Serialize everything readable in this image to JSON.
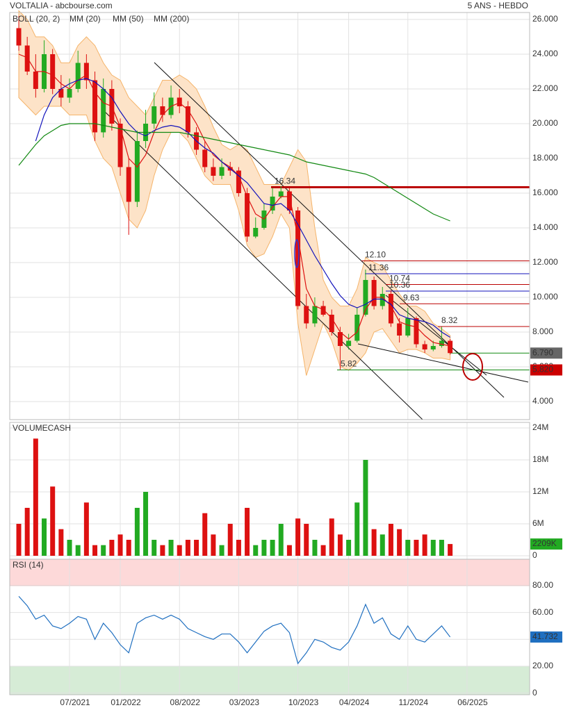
{
  "header": {
    "title": "VOLTALIA - abcbourse.com",
    "period": "5 ANS - HEBDO"
  },
  "chart_data": [
    {
      "type": "candlestick",
      "xlim": [
        -1.07,
        60.4
      ],
      "ylim": [
        2.96,
        26.4
      ],
      "xticks": [
        {
          "value": 6,
          "label": "07/2021"
        },
        {
          "value": 12,
          "label": "01/2022"
        },
        {
          "value": 19,
          "label": "08/2022"
        },
        {
          "value": 26,
          "label": "03/2023"
        },
        {
          "value": 33,
          "label": "10/2023"
        },
        {
          "value": 39,
          "label": "04/2024"
        },
        {
          "value": 46,
          "label": "11/2024"
        },
        {
          "value": 53,
          "label": "06/2025"
        }
      ],
      "yticks": [
        {
          "value": 26,
          "label": "26.000"
        },
        {
          "value": 24,
          "label": "24.000"
        },
        {
          "value": 22,
          "label": "22.000"
        },
        {
          "value": 20,
          "label": "20.000"
        },
        {
          "value": 18,
          "label": "18.000"
        },
        {
          "value": 16,
          "label": "16.000"
        },
        {
          "value": 14,
          "label": "14.000"
        },
        {
          "value": 12,
          "label": "12.000"
        },
        {
          "value": 10,
          "label": "10.000"
        },
        {
          "value": 8,
          "label": "8.000"
        },
        {
          "value": 6,
          "label": "6.000"
        },
        {
          "value": 4,
          "label": "4.000"
        }
      ],
      "grid": true,
      "up_color": "#22aa22",
      "down_color": "#dd1111",
      "x": [
        0,
        1,
        2,
        3,
        4,
        5,
        6,
        7,
        8,
        9,
        10,
        11,
        12,
        13,
        14,
        15,
        16,
        17,
        18,
        19,
        20,
        21,
        22,
        23,
        24,
        25,
        26,
        27,
        28,
        29,
        30,
        31,
        32,
        33,
        34,
        35,
        36,
        37,
        38,
        39,
        40,
        41,
        42,
        43,
        44,
        45,
        46,
        47,
        48,
        49,
        50,
        51
      ],
      "open": [
        25.5,
        24.5,
        23,
        22,
        24,
        22,
        21.5,
        22,
        23.5,
        22.5,
        19.5,
        22,
        20,
        17.5,
        15.5,
        19,
        20,
        21,
        20.5,
        21.5,
        21,
        19.5,
        18.5,
        17.5,
        17,
        17.5,
        17.3,
        16,
        13.5,
        14,
        15,
        15.8,
        16.1,
        15,
        9.5,
        8.5,
        9.5,
        9,
        8,
        7.2,
        7.5,
        9,
        11,
        9.5,
        10.2,
        8.5,
        7.8,
        8.8,
        7.3,
        7,
        7.2,
        7.5
      ],
      "high": [
        26.2,
        25,
        24,
        24.8,
        24.3,
        22.8,
        22.6,
        24.2,
        24,
        23,
        22.6,
        22.5,
        20.3,
        18,
        19.6,
        20.8,
        21.8,
        21.5,
        22.2,
        22,
        21.3,
        19.8,
        19,
        18,
        18,
        17.8,
        17.5,
        16.3,
        14.6,
        15.4,
        16.3,
        16.4,
        16.3,
        15.2,
        10.2,
        10,
        9.8,
        9.3,
        8.3,
        7.9,
        9.4,
        11.6,
        11.2,
        10.6,
        10.4,
        8.8,
        9.4,
        8.9,
        7.5,
        7.5,
        8.3,
        7.6
      ],
      "low": [
        24.2,
        22.8,
        21.5,
        21.8,
        21.7,
        21,
        21.2,
        21.8,
        22,
        19,
        19.2,
        19.6,
        17,
        13.6,
        15.2,
        18.6,
        19.7,
        20.1,
        20.3,
        20.6,
        19.2,
        18.2,
        17.2,
        16.7,
        16.8,
        17,
        15.8,
        13.2,
        13.4,
        13.9,
        14.8,
        15.7,
        14.8,
        9.3,
        8.2,
        8.3,
        8.9,
        7.8,
        5.82,
        7,
        7.4,
        8.9,
        9.3,
        9.3,
        8.3,
        7.4,
        7.7,
        7.1,
        6.8,
        6.9,
        7.1,
        6.7
      ],
      "close": [
        24.5,
        23,
        22,
        24,
        22,
        21.5,
        22,
        23.5,
        22.5,
        19.5,
        22,
        20,
        17.5,
        15.5,
        19,
        20,
        21,
        20.5,
        21.5,
        21,
        19.5,
        18.5,
        17.5,
        17,
        17.5,
        17.3,
        16,
        13.5,
        14,
        15,
        15.8,
        16.1,
        15,
        9.5,
        8.5,
        9.5,
        9,
        8,
        7.2,
        7.5,
        9,
        11,
        9.5,
        10.2,
        8.5,
        7.8,
        8.8,
        7.3,
        7,
        7.2,
        7.5,
        6.79
      ],
      "bands": {
        "name": "BOLL (20, 2)",
        "color": "#f5b46a",
        "fill": "#fde3c8",
        "upper": [
          26.5,
          26,
          25,
          25,
          24.5,
          23.5,
          23.5,
          24.5,
          25,
          24.5,
          23.5,
          22.8,
          22.5,
          21.5,
          21,
          20.5,
          21.5,
          22.5,
          22.5,
          22.8,
          22.5,
          22,
          21,
          19.8,
          18.8,
          18.5,
          18.8,
          18.5,
          17.5,
          16.5,
          16.5,
          16.5,
          17.5,
          18.5,
          17.8,
          14,
          11,
          10,
          9.5,
          9.5,
          10.5,
          12.3,
          12,
          11.8,
          11,
          10.2,
          9.5,
          9.5,
          9.2,
          8.5,
          8.2,
          7.8
        ],
        "lower": [
          21.5,
          21,
          20.5,
          21,
          21,
          21,
          20.5,
          20.5,
          20.5,
          19,
          18,
          17.5,
          16,
          14.5,
          14,
          15,
          17,
          18.5,
          19.5,
          19.5,
          19,
          18,
          17,
          16.5,
          16.5,
          16.5,
          15,
          13,
          12.3,
          12.5,
          13.5,
          14.8,
          14,
          8.5,
          5.5,
          7,
          8.5,
          7.5,
          6,
          5.8,
          6.2,
          6.8,
          8,
          8.2,
          7.5,
          6.8,
          7,
          7,
          6.8,
          6.5,
          6.5,
          6.4
        ]
      },
      "series": [
        {
          "name": "MM (20)",
          "color": "#dd1111",
          "values": [
            24,
            23.8,
            23,
            23,
            22.8,
            22.3,
            22,
            22.5,
            22.8,
            21.8,
            21.2,
            21,
            19.8,
            18,
            17.5,
            18.2,
            19.5,
            20.5,
            21,
            21.2,
            20.8,
            20,
            19,
            18.2,
            17.8,
            17.5,
            17,
            15.8,
            14.8,
            14.5,
            15.2,
            15.8,
            15.8,
            13.5,
            10.5,
            9.5,
            9.3,
            8.8,
            8,
            7.6,
            8,
            9.3,
            10,
            10,
            9.5,
            8.6,
            8.4,
            8.3,
            7.8,
            7.4,
            7.3,
            7.2
          ]
        },
        {
          "name": "MM (50)",
          "color": "#1111bb",
          "values": [
            null,
            null,
            19,
            20.5,
            21.5,
            22,
            22.3,
            22.5,
            22.6,
            22.4,
            22,
            21.5,
            20.7,
            20,
            19.5,
            19.3,
            19.6,
            19.8,
            19.9,
            19.8,
            19.5,
            19,
            18.6,
            18.3,
            17.8,
            17.4,
            17,
            16.6,
            16,
            15.4,
            15.3,
            15.4,
            15,
            14.2,
            13.3,
            12.4,
            11.6,
            10.8,
            10.1,
            9.6,
            9.4,
            9.6,
            9.9,
            9.9,
            9.6,
            9,
            8.8,
            8.7,
            8.6,
            8.4,
            8,
            7.7
          ]
        },
        {
          "name": "MM (200)",
          "color": "#118811",
          "values": [
            17.6,
            18.2,
            18.8,
            19.3,
            19.6,
            19.9,
            20,
            20,
            20,
            20,
            19.9,
            19.8,
            19.7,
            19.6,
            19.5,
            19.5,
            19.5,
            19.5,
            19.5,
            19.5,
            19.4,
            19.3,
            19.2,
            19.1,
            19,
            18.9,
            18.8,
            18.7,
            18.6,
            18.5,
            18.4,
            18.3,
            18.2,
            18,
            17.8,
            17.7,
            17.6,
            17.5,
            17.4,
            17.3,
            17.2,
            17.1,
            16.9,
            16.6,
            16.3,
            16,
            15.7,
            15.4,
            15.1,
            14.8,
            14.6,
            14.4
          ]
        }
      ],
      "levels": [
        {
          "value": 16.34,
          "label": "16.34",
          "color": "#bb0000"
        },
        {
          "value": 12.1,
          "label": "12.10",
          "color": "#bb0000"
        },
        {
          "value": 11.36,
          "label": "11.36",
          "color": "#1111bb"
        },
        {
          "value": 10.74,
          "label": "10.74",
          "color": "#bb0000"
        },
        {
          "value": 10.36,
          "label": "10.36",
          "color": "#1111bb"
        },
        {
          "value": 9.63,
          "label": "9.63",
          "color": "#bb0000"
        },
        {
          "value": 8.32,
          "label": "8.32",
          "color": "#bb0000"
        },
        {
          "value": 6.79,
          "badge": "6.790",
          "color": "#118811",
          "badge_color": "#666666"
        },
        {
          "value": 5.82,
          "label": "5.82",
          "badge": "5.820",
          "color": "#118811",
          "badge_color": "#cc0000"
        }
      ]
    },
    {
      "type": "bar",
      "title": "VOLUMECASH",
      "ylim": [
        -650000,
        25040000
      ],
      "yticks": [
        {
          "value": 24000000,
          "label": "24M"
        },
        {
          "value": 18000000,
          "label": "18M"
        },
        {
          "value": 12000000,
          "label": "12M"
        },
        {
          "value": 6000000,
          "label": "6M"
        },
        0
      ],
      "values": [
        6000000,
        9000000,
        22000000,
        7000000,
        13000000,
        5000000,
        3000000,
        2000000,
        10000000,
        2000000,
        2000000,
        3000000,
        4000000,
        3000000,
        9000000,
        12000000,
        3000000,
        2000000,
        3000000,
        2000000,
        3000000,
        3000000,
        8000000,
        4000000,
        2000000,
        6000000,
        3000000,
        9000000,
        2000000,
        3000000,
        3000000,
        6000000,
        2000000,
        7000000,
        6000000,
        3000000,
        2000000,
        7000000,
        4000000,
        3000000,
        10000000,
        18000000,
        5000000,
        4000000,
        6000000,
        5000000,
        3000000,
        3000000,
        4000000,
        3000000,
        3000000,
        2209000
      ],
      "value_labels": [
        null,
        null,
        null,
        null,
        null,
        null,
        null,
        null,
        null,
        null,
        null,
        null,
        null,
        null,
        null,
        null,
        null,
        null,
        null,
        null,
        null,
        null,
        null,
        null,
        null,
        null,
        null,
        null,
        null,
        null,
        null,
        null,
        null,
        null,
        null,
        null,
        null,
        null,
        null,
        null,
        null,
        null,
        null,
        null,
        null,
        null,
        null,
        null,
        null,
        null,
        null,
        "2209K"
      ],
      "badge_color": "#22aa22"
    },
    {
      "type": "line",
      "title": "RSI (14)",
      "color": "#1f6fc0",
      "ylim": [
        -1.2,
        99.6
      ],
      "yticks": [
        {
          "value": 80,
          "label": "80.00"
        },
        {
          "value": 60,
          "label": "60.00"
        },
        {
          "value": 40,
          "label": "40.00"
        },
        {
          "value": 20,
          "label": "20.00"
        },
        0
      ],
      "zones": [
        {
          "from": 80,
          "to": 99.6,
          "color": "#fdd9d9",
          "edge": "#e05050"
        },
        {
          "from": -1.2,
          "to": 20,
          "color": "#d6ecd6",
          "edge": "#50a050"
        }
      ],
      "values": [
        72,
        65,
        55,
        58,
        50,
        48,
        52,
        57,
        55,
        40,
        52,
        45,
        36,
        30,
        52,
        56,
        58,
        55,
        58,
        55,
        48,
        45,
        42,
        40,
        44,
        44,
        38,
        30,
        38,
        46,
        50,
        52,
        45,
        22,
        30,
        40,
        38,
        34,
        32,
        38,
        50,
        66,
        52,
        56,
        44,
        40,
        50,
        40,
        38,
        44,
        50,
        41.732
      ]
    }
  ]
}
